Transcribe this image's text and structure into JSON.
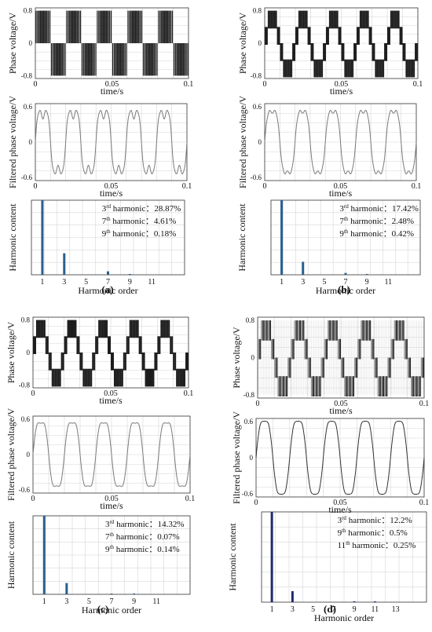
{
  "figure": {
    "panel_labels": [
      "(a)",
      "(b)",
      "(c)",
      "(d)"
    ]
  },
  "colors": {
    "pwm": "#1a1a1a",
    "pwm_d_dark": "#222222",
    "pwm_d_light": "#8c8c8c",
    "filtered": "#7a7a7a",
    "filtered_d": "#333333",
    "bar": "#2a5f8f",
    "bar_d": "#1f2a6e",
    "grid": "#d6d6d6"
  },
  "chart_data": [
    {
      "panel": "a",
      "type": "line",
      "title": "",
      "ylabel": "Phase voltage/V",
      "xlabel": "time/s",
      "xlim": [
        0,
        0.1
      ],
      "ylim": [
        -0.8,
        0.8
      ],
      "xticks": [
        "0",
        "0.05",
        "0.1"
      ],
      "yticks": [
        "0.8",
        "0",
        "-0.8"
      ],
      "series": [
        {
          "levels_pu": [
            0.8,
            -0.8
          ],
          "fundamental_cycles": 5,
          "pattern": "two-level PWM"
        }
      ]
    },
    {
      "panel": "a",
      "type": "line",
      "ylabel": "Filtered phase voltage/V",
      "xlabel": "time/s",
      "xlim": [
        0,
        0.1
      ],
      "ylim": [
        -0.6,
        0.6
      ],
      "xticks": [
        "0",
        "0.05",
        "0.1"
      ],
      "yticks": [
        "0.6",
        "0",
        "-0.6"
      ],
      "series": [
        {
          "amplitude": 0.55,
          "cycles": 5,
          "h3_ratio": 0.2887,
          "h7_ratio": 0.0461,
          "h9_ratio": 0.0018
        }
      ]
    },
    {
      "panel": "a",
      "type": "bar",
      "ylabel": "Harmonic content",
      "xlabel": "Harmonic order",
      "xticks": [
        "1",
        "3",
        "5",
        "7",
        "9",
        "11"
      ],
      "x": [
        1,
        3,
        7,
        9
      ],
      "values": [
        100,
        28.87,
        4.61,
        0.18
      ],
      "annotations": [
        {
          "order": "3",
          "suffix": "rd",
          "value": "28.87%"
        },
        {
          "order": "7",
          "suffix": "th",
          "value": "4.61%"
        },
        {
          "order": "9",
          "suffix": "th",
          "value": "0.18%"
        }
      ]
    },
    {
      "panel": "b",
      "type": "line",
      "ylabel": "Phase voltage/V",
      "xlabel": "time/s",
      "xlim": [
        0,
        0.1
      ],
      "ylim": [
        -0.8,
        0.8
      ],
      "xticks": [
        "0",
        "0.05",
        "0.1"
      ],
      "yticks": [
        "0.8",
        "0",
        "-0.8"
      ],
      "series": [
        {
          "levels_pu": [
            0.8,
            0.4,
            0,
            -0.4,
            -0.8
          ],
          "fundamental_cycles": 5,
          "pattern": "multilevel PWM"
        }
      ]
    },
    {
      "panel": "b",
      "type": "line",
      "ylabel": "Filtered phase voltage/V",
      "xlabel": "time/s",
      "xlim": [
        0,
        0.1
      ],
      "ylim": [
        -0.6,
        0.6
      ],
      "xticks": [
        "0",
        "0.05",
        "0.1"
      ],
      "yticks": [
        "0.6",
        "0",
        "-0.6"
      ],
      "series": [
        {
          "amplitude": 0.55,
          "cycles": 5,
          "h3_ratio": 0.1742,
          "h7_ratio": 0.0248,
          "h9_ratio": 0.0042
        }
      ]
    },
    {
      "panel": "b",
      "type": "bar",
      "ylabel": "Harmonic content",
      "xlabel": "Harmonic order",
      "xticks": [
        "1",
        "3",
        "5",
        "7",
        "9",
        "11"
      ],
      "x": [
        1,
        3,
        7,
        9
      ],
      "values": [
        100,
        17.42,
        2.48,
        0.42
      ],
      "annotations": [
        {
          "order": "3",
          "suffix": "rd",
          "value": "17.42%"
        },
        {
          "order": "7",
          "suffix": "th",
          "value": "2.48%"
        },
        {
          "order": "9",
          "suffix": "th",
          "value": "0.42%"
        }
      ]
    },
    {
      "panel": "c",
      "type": "line",
      "ylabel": "Phase voltage/V",
      "xlabel": "time/s",
      "xlim": [
        0,
        0.1
      ],
      "ylim": [
        -0.8,
        0.8
      ],
      "xticks": [
        "0",
        "0.05",
        "0.1"
      ],
      "yticks": [
        "0.8",
        "0",
        "-0.8"
      ],
      "series": [
        {
          "levels_pu": [
            0.8,
            0.4,
            0,
            -0.4,
            -0.8
          ],
          "fundamental_cycles": 5,
          "pattern": "multilevel PWM"
        }
      ]
    },
    {
      "panel": "c",
      "type": "line",
      "ylabel": "Filtered phase voltage/V",
      "xlabel": "time/s",
      "xlim": [
        0,
        0.1
      ],
      "ylim": [
        -0.6,
        0.6
      ],
      "xticks": [
        "0",
        "0.05",
        "0.1"
      ],
      "yticks": [
        "0.6",
        "0",
        "-0.6"
      ],
      "series": [
        {
          "amplitude": 0.55,
          "cycles": 5,
          "h3_ratio": 0.1432,
          "h7_ratio": 0.0007,
          "h9_ratio": 0.0014
        }
      ]
    },
    {
      "panel": "c",
      "type": "bar",
      "ylabel": "Harmonic content",
      "xlabel": "Harmonic order",
      "xticks": [
        "1",
        "3",
        "5",
        "7",
        "9",
        "11"
      ],
      "x": [
        1,
        3,
        7,
        9
      ],
      "values": [
        100,
        14.32,
        0.07,
        0.14
      ],
      "annotations": [
        {
          "order": "3",
          "suffix": "rd",
          "value": "14.32%"
        },
        {
          "order": "7",
          "suffix": "th",
          "value": "0.07%"
        },
        {
          "order": "9",
          "suffix": "th",
          "value": "0.14%"
        }
      ]
    },
    {
      "panel": "d",
      "type": "line",
      "ylabel": "Phase voltage/V",
      "xlabel": "time/s",
      "xlim": [
        0,
        0.1
      ],
      "ylim": [
        -0.8,
        0.8
      ],
      "xticks": [
        "0",
        "0.05",
        "0.1"
      ],
      "yticks": [
        "0.8",
        "0",
        "-0.8"
      ],
      "series": [
        {
          "levels_pu": [
            0.8,
            0.4,
            0,
            -0.4,
            -0.8
          ],
          "fundamental_cycles": 5,
          "pattern": "multilevel PWM (overlaid)"
        }
      ]
    },
    {
      "panel": "d",
      "type": "line",
      "ylabel": "Filtered phase voltage/V",
      "xlabel": "time/s",
      "xlim": [
        0,
        0.1
      ],
      "ylim": [
        -0.6,
        0.6
      ],
      "xticks": [
        "0",
        "0.05",
        "0.1"
      ],
      "yticks": [
        "0.6",
        "0",
        "-0.6"
      ],
      "series": [
        {
          "amplitude": 0.62,
          "cycles": 5,
          "h3_ratio": 0.122,
          "h9_ratio": 0.005,
          "h11_ratio": 0.0025
        }
      ]
    },
    {
      "panel": "d",
      "type": "bar",
      "ylabel": "Harmonic content",
      "xlabel": "Harmonic order",
      "xticks": [
        "1",
        "3",
        "5",
        "7",
        "9",
        "11",
        "13"
      ],
      "x": [
        1,
        3,
        9,
        11
      ],
      "values": [
        100,
        12.2,
        0.5,
        0.25
      ],
      "annotations": [
        {
          "order": "3",
          "suffix": "rd",
          "value": "12.2%"
        },
        {
          "order": "9",
          "suffix": "th",
          "value": "0.5%"
        },
        {
          "order": "11",
          "suffix": "th",
          "value": "0.25%"
        }
      ]
    }
  ]
}
